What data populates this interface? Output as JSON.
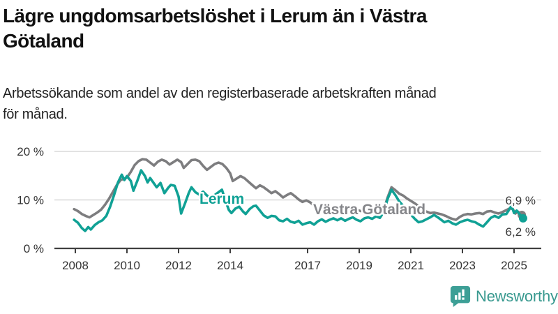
{
  "header": {
    "title_line1": "Lägre ungdomsarbetslöshet i Lerum än i Västra",
    "title_line2": "Götaland",
    "subtitle_line1": "Arbetssökande som andel av den registerbaserade arbetskraften månad",
    "subtitle_line2": "för månad."
  },
  "branding": {
    "logo_text": "Newsworthy",
    "logo_icon": "bar-chart-speech-bubble-icon",
    "logo_color": "#38998f"
  },
  "chart_data": {
    "type": "line",
    "title": "Lägre ungdomsarbetslöshet i Lerum än i Västra Götaland",
    "subtitle": "Arbetssökande som andel av den registerbaserade arbetskraften månad för månad.",
    "xlabel": "",
    "ylabel": "",
    "xlim": [
      2007.85,
      2025.75
    ],
    "ylim": [
      0,
      21.5
    ],
    "grid": "horizontal",
    "grid_color": "#d8d8d8",
    "axis_color": "#3f3f3f",
    "tick_label_color": "#333333",
    "legend_position": "inline-labels",
    "y_ticks": [
      {
        "value": 0,
        "label": "0 %"
      },
      {
        "value": 10,
        "label": "10 %"
      },
      {
        "value": 20,
        "label": "20 %"
      }
    ],
    "x_ticks": [
      {
        "value": 2008,
        "label": "2008"
      },
      {
        "value": 2010,
        "label": "2010"
      },
      {
        "value": 2012,
        "label": "2012"
      },
      {
        "value": 2014,
        "label": "2014"
      },
      {
        "value": 2017,
        "label": "2017"
      },
      {
        "value": 2019,
        "label": "2019"
      },
      {
        "value": 2021,
        "label": "2021"
      },
      {
        "value": 2023,
        "label": "2023"
      },
      {
        "value": 2025,
        "label": "2025"
      }
    ],
    "series": [
      {
        "name": "Västra Götaland",
        "color": "#7d7d7f",
        "end_label": "6,9 %",
        "end_value": 6.9,
        "points": [
          [
            2007.95,
            8.1
          ],
          [
            2008.1,
            7.7
          ],
          [
            2008.25,
            7.1
          ],
          [
            2008.4,
            6.7
          ],
          [
            2008.55,
            6.4
          ],
          [
            2008.7,
            6.9
          ],
          [
            2008.85,
            7.4
          ],
          [
            2009.0,
            8.0
          ],
          [
            2009.15,
            9.0
          ],
          [
            2009.3,
            10.2
          ],
          [
            2009.45,
            11.6
          ],
          [
            2009.6,
            13.0
          ],
          [
            2009.75,
            14.1
          ],
          [
            2009.9,
            14.4
          ],
          [
            2010.0,
            14.6
          ],
          [
            2010.15,
            15.8
          ],
          [
            2010.3,
            17.2
          ],
          [
            2010.45,
            18.0
          ],
          [
            2010.6,
            18.4
          ],
          [
            2010.75,
            18.3
          ],
          [
            2010.9,
            17.7
          ],
          [
            2011.05,
            17.1
          ],
          [
            2011.2,
            17.9
          ],
          [
            2011.35,
            18.3
          ],
          [
            2011.5,
            18.0
          ],
          [
            2011.65,
            17.3
          ],
          [
            2011.8,
            17.8
          ],
          [
            2011.95,
            18.3
          ],
          [
            2012.1,
            17.8
          ],
          [
            2012.2,
            16.6
          ],
          [
            2012.35,
            17.4
          ],
          [
            2012.5,
            18.2
          ],
          [
            2012.65,
            18.3
          ],
          [
            2012.8,
            18.0
          ],
          [
            2012.95,
            17.0
          ],
          [
            2013.1,
            16.2
          ],
          [
            2013.25,
            16.8
          ],
          [
            2013.4,
            17.4
          ],
          [
            2013.55,
            17.7
          ],
          [
            2013.7,
            17.4
          ],
          [
            2013.85,
            16.6
          ],
          [
            2014.0,
            15.5
          ],
          [
            2014.1,
            13.9
          ],
          [
            2014.25,
            14.4
          ],
          [
            2014.4,
            14.9
          ],
          [
            2014.55,
            14.5
          ],
          [
            2014.7,
            13.8
          ],
          [
            2014.85,
            13.1
          ],
          [
            2015.0,
            12.4
          ],
          [
            2015.15,
            13.0
          ],
          [
            2015.3,
            12.6
          ],
          [
            2015.45,
            12.0
          ],
          [
            2015.6,
            11.4
          ],
          [
            2015.75,
            11.8
          ],
          [
            2015.9,
            11.2
          ],
          [
            2016.05,
            10.5
          ],
          [
            2016.2,
            11.0
          ],
          [
            2016.35,
            11.4
          ],
          [
            2016.5,
            10.8
          ],
          [
            2016.65,
            10.1
          ],
          [
            2016.8,
            9.6
          ],
          [
            2016.95,
            9.9
          ],
          [
            2017.1,
            9.5
          ],
          [
            2017.25,
            8.8
          ],
          [
            2017.4,
            8.3
          ],
          [
            2017.55,
            8.6
          ],
          [
            2017.7,
            8.9
          ],
          [
            2017.85,
            8.4
          ],
          [
            2018.0,
            7.9
          ],
          [
            2018.15,
            8.3
          ],
          [
            2018.3,
            8.6
          ],
          [
            2018.45,
            8.3
          ],
          [
            2018.6,
            8.0
          ],
          [
            2018.75,
            8.3
          ],
          [
            2018.9,
            8.0
          ],
          [
            2019.05,
            7.7
          ],
          [
            2019.2,
            7.9
          ],
          [
            2019.35,
            7.6
          ],
          [
            2019.5,
            7.8
          ],
          [
            2019.65,
            7.4
          ],
          [
            2019.8,
            7.3
          ],
          [
            2019.95,
            8.0
          ],
          [
            2020.1,
            10.5
          ],
          [
            2020.25,
            12.6
          ],
          [
            2020.4,
            12.0
          ],
          [
            2020.55,
            11.3
          ],
          [
            2020.7,
            10.9
          ],
          [
            2020.85,
            10.3
          ],
          [
            2021.0,
            9.8
          ],
          [
            2021.15,
            9.3
          ],
          [
            2021.3,
            8.7
          ],
          [
            2021.45,
            8.0
          ],
          [
            2021.6,
            7.6
          ],
          [
            2021.75,
            7.3
          ],
          [
            2021.9,
            7.4
          ],
          [
            2022.05,
            7.2
          ],
          [
            2022.2,
            7.0
          ],
          [
            2022.35,
            6.7
          ],
          [
            2022.5,
            6.3
          ],
          [
            2022.6,
            6.1
          ],
          [
            2022.75,
            5.9
          ],
          [
            2022.9,
            6.5
          ],
          [
            2023.05,
            6.9
          ],
          [
            2023.2,
            7.1
          ],
          [
            2023.35,
            7.0
          ],
          [
            2023.5,
            7.2
          ],
          [
            2023.65,
            7.3
          ],
          [
            2023.8,
            7.1
          ],
          [
            2023.95,
            7.6
          ],
          [
            2024.1,
            7.7
          ],
          [
            2024.25,
            7.4
          ],
          [
            2024.4,
            7.2
          ],
          [
            2024.55,
            7.5
          ],
          [
            2024.7,
            7.9
          ],
          [
            2024.85,
            8.3
          ],
          [
            2024.95,
            8.1
          ],
          [
            2025.05,
            7.2
          ],
          [
            2025.15,
            7.6
          ],
          [
            2025.3,
            6.9
          ]
        ]
      },
      {
        "name": "Lerum",
        "color": "#10a195",
        "end_label": "6,2 %",
        "end_value": 6.2,
        "points": [
          [
            2007.95,
            5.9
          ],
          [
            2008.1,
            5.3
          ],
          [
            2008.25,
            4.2
          ],
          [
            2008.38,
            3.6
          ],
          [
            2008.5,
            4.4
          ],
          [
            2008.6,
            3.9
          ],
          [
            2008.75,
            4.8
          ],
          [
            2008.9,
            5.4
          ],
          [
            2009.05,
            5.8
          ],
          [
            2009.2,
            6.7
          ],
          [
            2009.35,
            8.6
          ],
          [
            2009.5,
            11.0
          ],
          [
            2009.65,
            13.6
          ],
          [
            2009.8,
            15.2
          ],
          [
            2009.9,
            14.1
          ],
          [
            2010.0,
            14.9
          ],
          [
            2010.15,
            13.9
          ],
          [
            2010.25,
            11.9
          ],
          [
            2010.4,
            13.9
          ],
          [
            2010.55,
            16.1
          ],
          [
            2010.7,
            14.9
          ],
          [
            2010.8,
            13.6
          ],
          [
            2010.9,
            14.5
          ],
          [
            2011.05,
            13.4
          ],
          [
            2011.15,
            12.6
          ],
          [
            2011.3,
            13.5
          ],
          [
            2011.45,
            11.4
          ],
          [
            2011.6,
            12.5
          ],
          [
            2011.7,
            13.1
          ],
          [
            2011.85,
            12.9
          ],
          [
            2012.0,
            10.7
          ],
          [
            2012.1,
            7.2
          ],
          [
            2012.25,
            9.3
          ],
          [
            2012.4,
            11.5
          ],
          [
            2012.5,
            12.6
          ],
          [
            2012.65,
            11.6
          ],
          [
            2012.8,
            11.1
          ],
          [
            2012.95,
            11.7
          ],
          [
            2013.1,
            10.9
          ],
          [
            2013.25,
            10.4
          ],
          [
            2013.4,
            11.0
          ],
          [
            2013.55,
            11.6
          ],
          [
            2013.68,
            12.1
          ],
          [
            2013.8,
            10.1
          ],
          [
            2013.95,
            7.9
          ],
          [
            2014.05,
            7.3
          ],
          [
            2014.2,
            8.2
          ],
          [
            2014.35,
            8.6
          ],
          [
            2014.5,
            7.6
          ],
          [
            2014.6,
            7.1
          ],
          [
            2014.75,
            8.1
          ],
          [
            2014.9,
            8.7
          ],
          [
            2015.0,
            8.8
          ],
          [
            2015.15,
            7.8
          ],
          [
            2015.3,
            6.8
          ],
          [
            2015.45,
            6.3
          ],
          [
            2015.6,
            6.7
          ],
          [
            2015.75,
            6.6
          ],
          [
            2015.9,
            5.8
          ],
          [
            2016.05,
            5.6
          ],
          [
            2016.2,
            6.1
          ],
          [
            2016.35,
            5.5
          ],
          [
            2016.5,
            5.3
          ],
          [
            2016.65,
            5.7
          ],
          [
            2016.8,
            4.9
          ],
          [
            2016.95,
            5.2
          ],
          [
            2017.1,
            5.4
          ],
          [
            2017.25,
            4.9
          ],
          [
            2017.4,
            5.6
          ],
          [
            2017.55,
            6.0
          ],
          [
            2017.7,
            5.5
          ],
          [
            2017.85,
            5.9
          ],
          [
            2018.0,
            6.2
          ],
          [
            2018.15,
            5.8
          ],
          [
            2018.3,
            6.2
          ],
          [
            2018.45,
            5.7
          ],
          [
            2018.6,
            6.1
          ],
          [
            2018.75,
            6.4
          ],
          [
            2018.9,
            5.9
          ],
          [
            2019.05,
            5.6
          ],
          [
            2019.2,
            6.2
          ],
          [
            2019.35,
            6.4
          ],
          [
            2019.5,
            6.1
          ],
          [
            2019.65,
            6.6
          ],
          [
            2019.8,
            6.3
          ],
          [
            2019.95,
            7.5
          ],
          [
            2020.1,
            10.2
          ],
          [
            2020.25,
            12.1
          ],
          [
            2020.4,
            11.0
          ],
          [
            2020.55,
            9.7
          ],
          [
            2020.7,
            8.8
          ],
          [
            2020.85,
            7.9
          ],
          [
            2021.0,
            7.0
          ],
          [
            2021.15,
            6.1
          ],
          [
            2021.3,
            5.4
          ],
          [
            2021.45,
            5.6
          ],
          [
            2021.6,
            6.0
          ],
          [
            2021.75,
            6.4
          ],
          [
            2021.9,
            6.9
          ],
          [
            2022.05,
            6.4
          ],
          [
            2022.2,
            5.8
          ],
          [
            2022.3,
            5.4
          ],
          [
            2022.45,
            5.7
          ],
          [
            2022.6,
            5.2
          ],
          [
            2022.75,
            4.9
          ],
          [
            2022.9,
            5.4
          ],
          [
            2023.05,
            5.7
          ],
          [
            2023.2,
            5.9
          ],
          [
            2023.35,
            5.6
          ],
          [
            2023.5,
            5.4
          ],
          [
            2023.65,
            4.9
          ],
          [
            2023.8,
            4.5
          ],
          [
            2023.95,
            5.4
          ],
          [
            2024.1,
            6.3
          ],
          [
            2024.25,
            6.7
          ],
          [
            2024.4,
            6.3
          ],
          [
            2024.55,
            7.0
          ],
          [
            2024.7,
            7.1
          ],
          [
            2024.8,
            7.9
          ],
          [
            2024.9,
            8.8
          ],
          [
            2025.0,
            7.3
          ],
          [
            2025.1,
            7.8
          ],
          [
            2025.35,
            6.2
          ]
        ]
      }
    ]
  }
}
